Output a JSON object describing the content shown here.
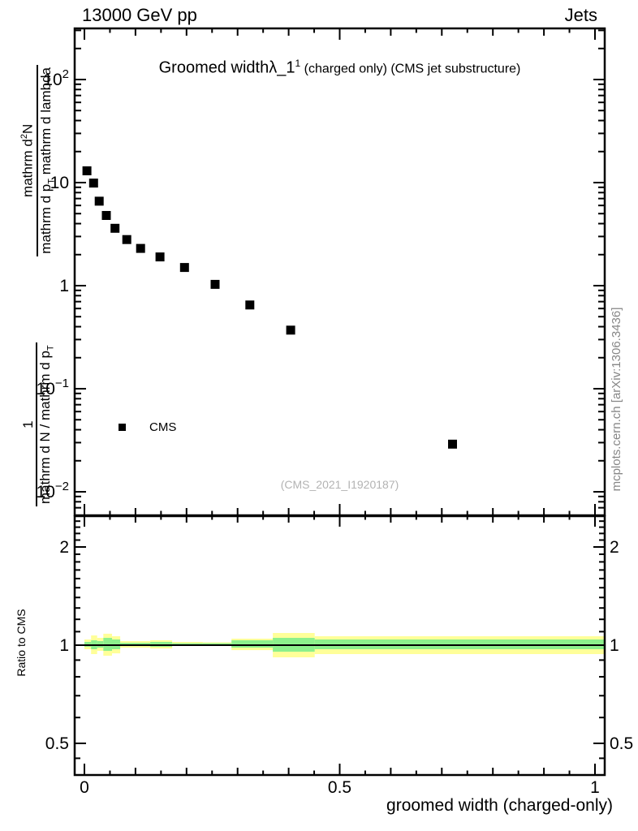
{
  "header": {
    "left_label": "13000 GeV pp",
    "right_label": "Jets"
  },
  "title": {
    "text": "Groomed width",
    "lambda": "λ_1",
    "superscript": "1",
    "suffix": " (charged only) (CMS jet substructure)"
  },
  "y_axis_label": {
    "frac_lower": {
      "num": "1",
      "den_main": "mathrm d N / mathrm d p",
      "den_sub": "T"
    },
    "frac_upper": {
      "num_pre": "mathrm d",
      "num_sup": "2",
      "num_post": "N",
      "den_pre": "mathrm d p",
      "den_sub": "T",
      "den_post": " mathrm d lambda"
    }
  },
  "ratio_axis_label": "Ratio to CMS",
  "x_axis_label": "groomed width (charged-only)",
  "legend": {
    "marker": "black-filled-square",
    "label": "CMS"
  },
  "watermark": "(CMS_2021_I1920187)",
  "side_note": "mcplots.cern.ch [arXiv:1306.3436]",
  "colors": {
    "marker": "#000000",
    "band_outer": "#ffff99",
    "band_inner": "#8df08c",
    "ratio_line": "#000000",
    "frame": "#000000",
    "watermark": "#b3b3b3",
    "side_note": "#878787"
  },
  "chart_data": {
    "type": "scatter",
    "title": "Groomed width λ_1¹ (charged only) (CMS jet substructure)",
    "xlabel": "groomed width (charged-only)",
    "ylabel_plain": "1/(mathrm dN/mathrm dp_T) mathrm d²N/(mathrm dp_T mathrm d lambda)",
    "grid": false,
    "x_range_frame": [
      -0.019,
      1.019
    ],
    "y_log_range_frame": [
      0.0059,
      313
    ],
    "x_major_ticks": [
      {
        "value": 0,
        "label": "0"
      },
      {
        "value": 0.5,
        "label": "0.5"
      },
      {
        "value": 1,
        "label": "1"
      }
    ],
    "x_minor_step": 0.05,
    "y_decade_labels": [
      {
        "value": 100,
        "base": "10",
        "exp": "2"
      },
      {
        "value": 10,
        "base": "10",
        "exp": ""
      },
      {
        "value": 1,
        "base": "1",
        "exp": ""
      },
      {
        "value": 0.1,
        "base": "10",
        "exp": "−1"
      },
      {
        "value": 0.01,
        "base": "10",
        "exp": "−2"
      }
    ],
    "series": [
      {
        "name": "CMS",
        "marker": "filled-square",
        "color": "#000000",
        "points": [
          [
            0.005,
            13.0
          ],
          [
            0.018,
            9.9
          ],
          [
            0.029,
            6.6
          ],
          [
            0.043,
            4.8
          ],
          [
            0.06,
            3.6
          ],
          [
            0.083,
            2.8
          ],
          [
            0.11,
            2.3
          ],
          [
            0.148,
            1.9
          ],
          [
            0.196,
            1.5
          ],
          [
            0.256,
            1.03
          ],
          [
            0.324,
            0.65
          ],
          [
            0.404,
            0.37
          ],
          [
            0.721,
            0.029
          ]
        ]
      }
    ],
    "ratio_panel": {
      "ylabel": "Ratio to CMS",
      "scale": "log2",
      "y_range_frame": [
        0.4,
        2.47
      ],
      "y_major_ticks": [
        {
          "value": 2,
          "label": "2"
        },
        {
          "value": 1,
          "label": "1"
        },
        {
          "value": 0.5,
          "label": "0.5"
        }
      ],
      "y_minor_ticks": [
        2.4,
        2.3,
        2.2,
        2.1,
        1.9,
        1.8,
        1.7,
        1.6,
        1.5,
        1.4,
        1.3,
        1.2,
        1.1,
        0.9,
        0.8,
        0.7,
        0.6,
        0.45
      ],
      "reference_line": 1.0,
      "band_segments": [
        {
          "x0": 0.0,
          "x1": 0.013,
          "ylo": 0.972,
          "yhi": 1.041,
          "glo": 0.989,
          "ghi": 1.023
        },
        {
          "x0": 0.013,
          "x1": 0.025,
          "ylo": 0.939,
          "yhi": 1.071,
          "glo": 0.972,
          "ghi": 1.035
        },
        {
          "x0": 0.025,
          "x1": 0.037,
          "ylo": 0.961,
          "yhi": 1.053,
          "glo": 0.983,
          "ghi": 1.029
        },
        {
          "x0": 0.037,
          "x1": 0.054,
          "ylo": 0.928,
          "yhi": 1.084,
          "glo": 0.961,
          "ghi": 1.053
        },
        {
          "x0": 0.054,
          "x1": 0.07,
          "ylo": 0.944,
          "yhi": 1.065,
          "glo": 0.972,
          "ghi": 1.041
        },
        {
          "x0": 0.07,
          "x1": 0.129,
          "ylo": 0.983,
          "yhi": 1.029,
          "glo": 0.994,
          "ghi": 1.017
        },
        {
          "x0": 0.129,
          "x1": 0.172,
          "ylo": 0.977,
          "yhi": 1.035,
          "glo": 0.989,
          "ghi": 1.023
        },
        {
          "x0": 0.172,
          "x1": 0.232,
          "ylo": 0.994,
          "yhi": 1.023,
          "glo": 0.997,
          "ghi": 1.014
        },
        {
          "x0": 0.232,
          "x1": 0.288,
          "ylo": 0.997,
          "yhi": 1.02,
          "glo": 1.0,
          "ghi": 1.014
        },
        {
          "x0": 0.288,
          "x1": 0.369,
          "ylo": 0.966,
          "yhi": 1.047,
          "glo": 0.983,
          "ghi": 1.035
        },
        {
          "x0": 0.369,
          "x1": 0.451,
          "ylo": 0.918,
          "yhi": 1.09,
          "glo": 0.955,
          "ghi": 1.053
        },
        {
          "x0": 0.451,
          "x1": 1.019,
          "ylo": 0.939,
          "yhi": 1.065,
          "glo": 0.972,
          "ghi": 1.041
        }
      ]
    }
  }
}
